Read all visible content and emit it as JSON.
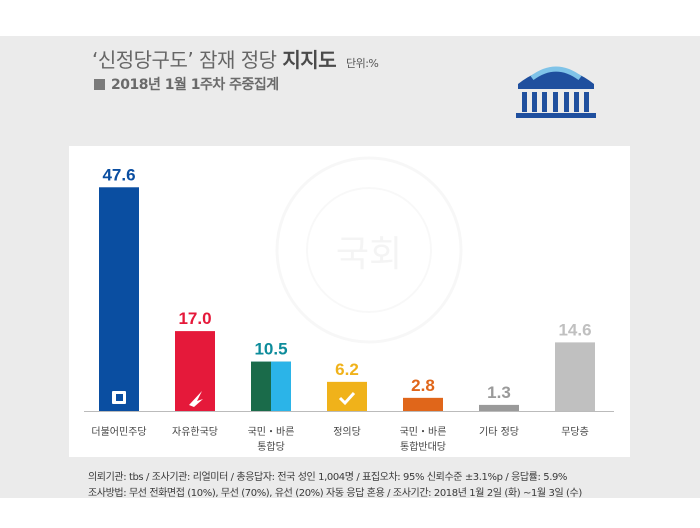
{
  "header": {
    "title_light": "‘신정당구도’ 잠재 정당",
    "title_bold": "지지도",
    "unit": "단위:%",
    "subtitle": "2018년 1월 1주차 주중집계"
  },
  "icons": {
    "logo": "national-assembly-icon",
    "watermark": "assembly-seal-watermark-icon"
  },
  "watermark_text": "국회",
  "colors": {
    "bg": "#ebebeb",
    "card": "#ffffff",
    "axis": "#bbbbbb"
  },
  "chart_data": {
    "type": "bar",
    "categories": [
      "더불어민주당",
      "자유한국당",
      "국민・바른\n통합당",
      "정의당",
      "국민・바른\n통합반대당",
      "기타 정당",
      "무당층"
    ],
    "values": [
      47.6,
      17.0,
      10.5,
      6.2,
      2.8,
      1.3,
      14.6
    ],
    "value_labels": [
      "47.6",
      "17.0",
      "10.5",
      "6.2",
      "2.8",
      "1.3",
      "14.6"
    ],
    "colors": [
      "#0a4ea1",
      "#e5193a",
      "#0d8c9b",
      "#f0b21a",
      "#e0661a",
      "#9a9a9a",
      "#c0c0c0"
    ],
    "label_colors": [
      "#0a4ea1",
      "#e5193a",
      "#0d8c9b",
      "#f0b21a",
      "#e0661a",
      "#9a9a9a",
      "#c0c0c0"
    ],
    "ylim": [
      0,
      50
    ],
    "grid": false,
    "xlabel": "",
    "ylabel": ""
  },
  "footer": {
    "line1": "의뢰기관: tbs / 조사기관: 리얼미터 / 총응답자: 전국 성인 1,004명 / 표집오차: 95% 신뢰수준 ±3.1%p / 응답률: 5.9%",
    "line2": "조사방법: 무선 전화면접 (10%), 무선 (70%), 유선 (20%) 자동 응답 혼용 / 조사기간: 2018년 1월 2일 (화) ~1월 3일 (수)"
  }
}
